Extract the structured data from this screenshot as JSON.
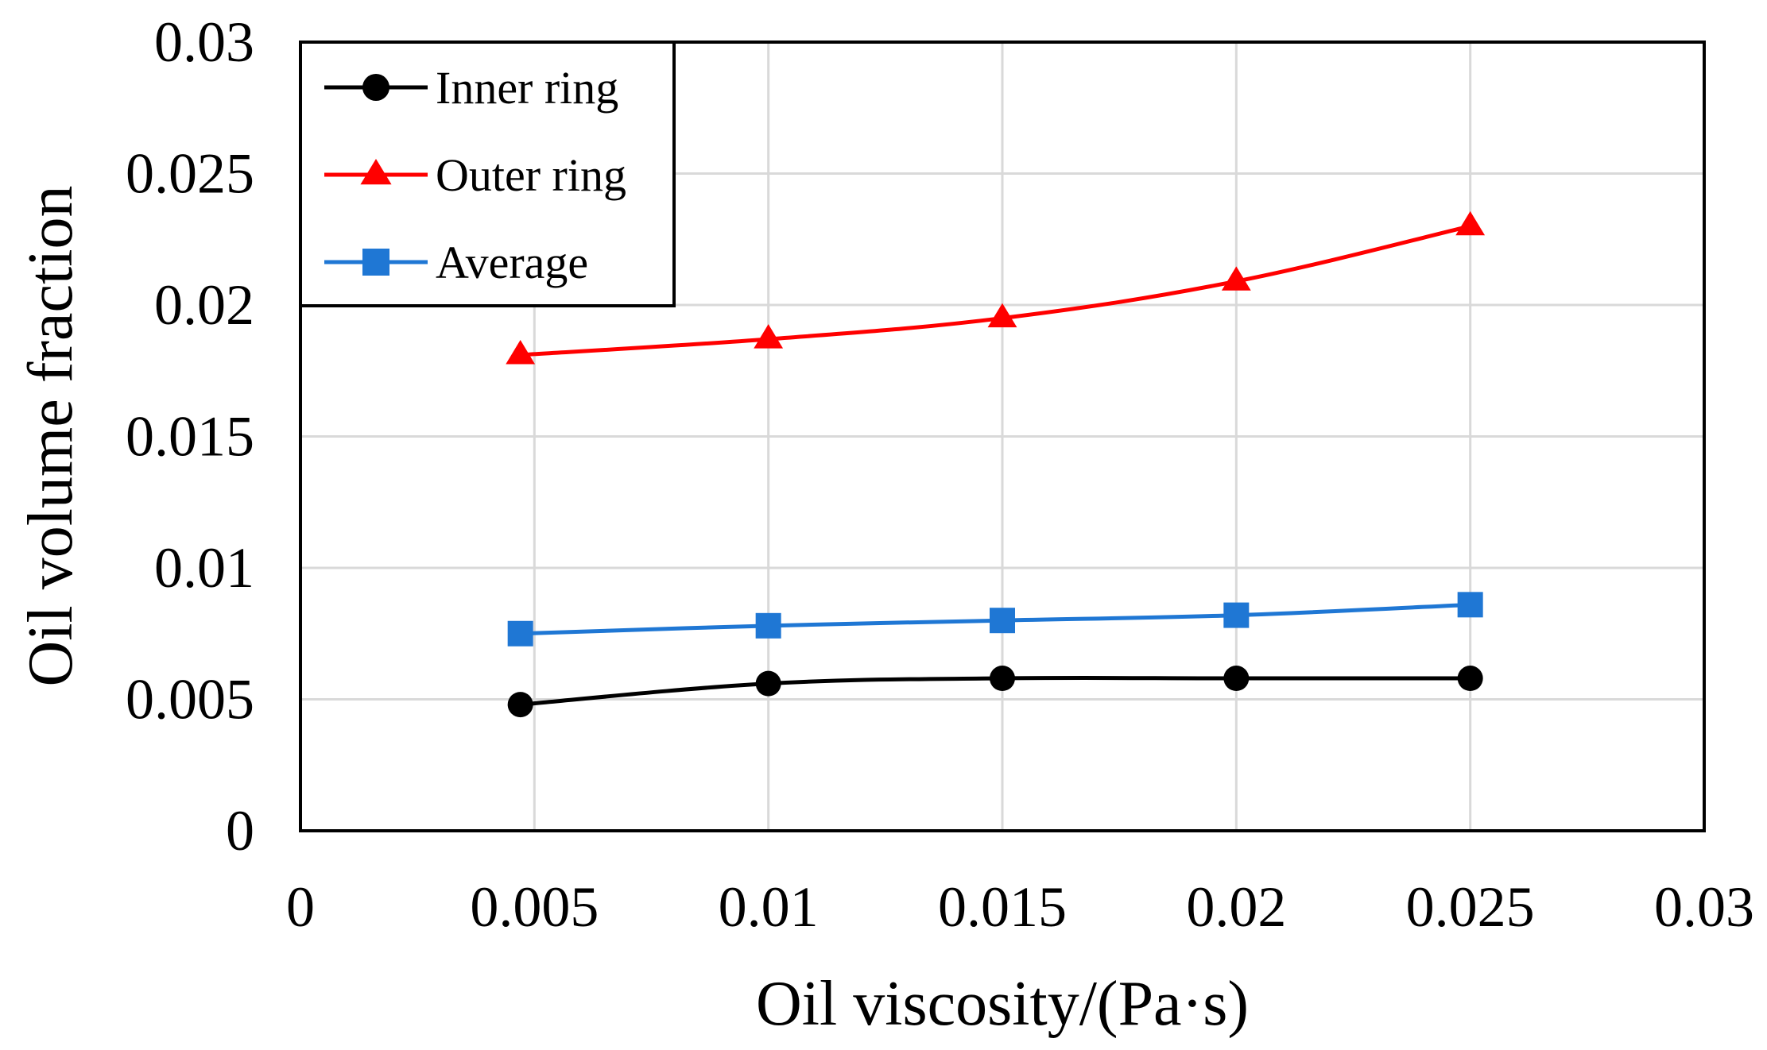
{
  "chart_data": {
    "type": "line",
    "title": "",
    "xlabel": "Oil viscosity/(Pa·s)",
    "ylabel": "Oil volume fraction",
    "xlim": [
      0,
      0.03
    ],
    "ylim": [
      0,
      0.03
    ],
    "x_ticks": [
      "0",
      "0.005",
      "0.01",
      "0.015",
      "0.02",
      "0.025",
      "0.03"
    ],
    "y_ticks": [
      "0",
      "0.005",
      "0.01",
      "0.015",
      "0.02",
      "0.025",
      "0.03"
    ],
    "grid": true,
    "legend_position": "top-left",
    "series": [
      {
        "name": "Inner ring",
        "color": "#000000",
        "marker": "circle",
        "x": [
          0.0047,
          0.01,
          0.015,
          0.02,
          0.025
        ],
        "y": [
          0.0048,
          0.0056,
          0.0058,
          0.0058,
          0.0058
        ]
      },
      {
        "name": "Outer ring",
        "color": "#ff0000",
        "marker": "triangle",
        "x": [
          0.0047,
          0.01,
          0.015,
          0.02,
          0.025
        ],
        "y": [
          0.0181,
          0.0187,
          0.0195,
          0.0209,
          0.023
        ]
      },
      {
        "name": "Average",
        "color": "#1f77d4",
        "marker": "square",
        "x": [
          0.0047,
          0.01,
          0.015,
          0.02,
          0.025
        ],
        "y": [
          0.0075,
          0.0078,
          0.008,
          0.0082,
          0.0086
        ]
      }
    ]
  }
}
